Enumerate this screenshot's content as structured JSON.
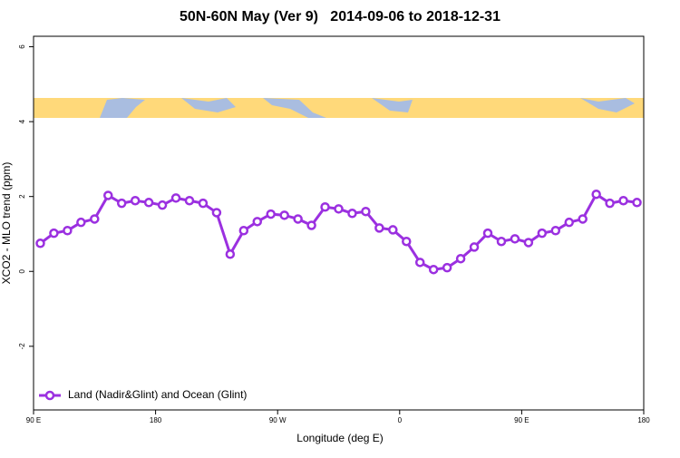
{
  "chart_data": {
    "type": "line",
    "title": "50N-60N May (Ver 9)   2014-09-06 to 2018-12-31",
    "x_label": "Longitude (deg E)",
    "y_label": "XCO2 - MLO trend (ppm)",
    "xlim": [
      90,
      540
    ],
    "ylim": [
      -3.7,
      6.28
    ],
    "xticks": [
      {
        "value": 90,
        "label": "90 E"
      },
      {
        "value": 180,
        "label": "180"
      },
      {
        "value": 270,
        "label": "90 W"
      },
      {
        "value": 360,
        "label": "0"
      },
      {
        "value": 450,
        "label": "90 E"
      },
      {
        "value": 540,
        "label": "180"
      }
    ],
    "yticks": [
      -2,
      0,
      2,
      4,
      6
    ],
    "legend": "bottom-left",
    "x": [
      95,
      105,
      115,
      125,
      135,
      145,
      155,
      165,
      175,
      185,
      195,
      205,
      215,
      225,
      235,
      245,
      255,
      265,
      275,
      285,
      295,
      305,
      315,
      325,
      335,
      345,
      355,
      365,
      375,
      385,
      395,
      405,
      415,
      425,
      435,
      445,
      455,
      465,
      475,
      485,
      495,
      505,
      515,
      525,
      535
    ],
    "series": [
      {
        "name": "Land (Nadir&Glint) and Ocean (Glint)",
        "color": "#9b30e0",
        "values": [
          0.75,
          1.02,
          1.09,
          1.31,
          1.4,
          2.03,
          1.82,
          1.89,
          1.84,
          1.77,
          1.96,
          1.89,
          1.82,
          1.57,
          0.46,
          1.09,
          1.33,
          1.53,
          1.5,
          1.4,
          1.23,
          1.72,
          1.67,
          1.55,
          1.6,
          1.16,
          1.11,
          0.8,
          0.24,
          0.05,
          0.1,
          0.34,
          0.65,
          1.02,
          0.8,
          0.87,
          0.77,
          1.02,
          1.09,
          1.31,
          1.4,
          2.06,
          1.82,
          1.89,
          1.84
        ]
      }
    ]
  }
}
